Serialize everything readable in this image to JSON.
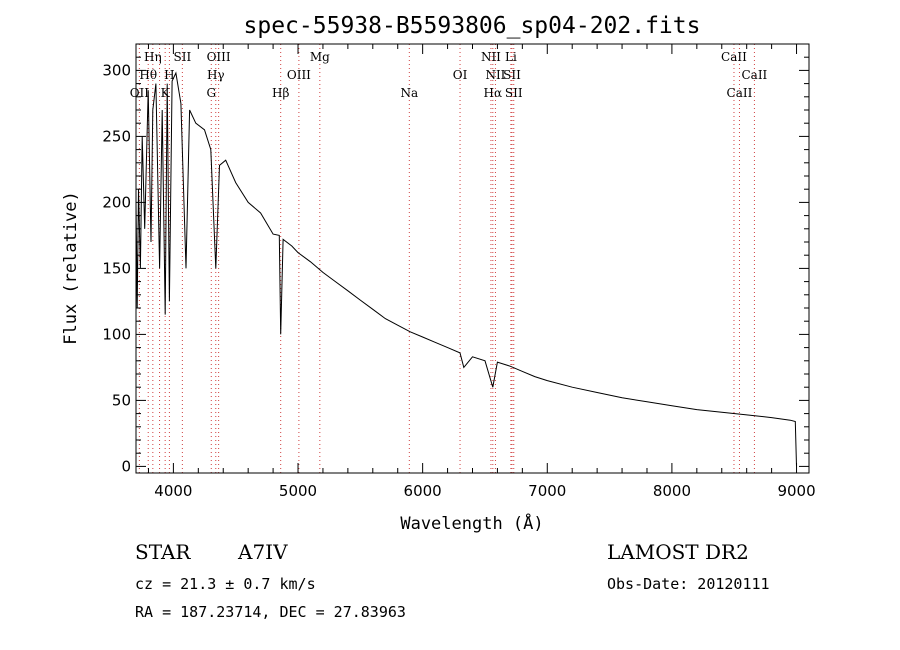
{
  "chart_data": {
    "type": "line",
    "title": "spec-55938-B5593806_sp04-202.fits",
    "xlabel": "Wavelength (Å)",
    "ylabel": "Flux (relative)",
    "xlim": [
      3700,
      9100
    ],
    "ylim": [
      -5,
      320
    ],
    "xticks": [
      4000,
      5000,
      6000,
      7000,
      8000,
      9000
    ],
    "yticks": [
      0,
      50,
      100,
      150,
      200,
      250,
      300
    ],
    "grid": false,
    "series": [
      {
        "x": [
          3700,
          3710,
          3720,
          3735,
          3750,
          3770,
          3798,
          3820,
          3835,
          3860,
          3889,
          3910,
          3934,
          3950,
          3968,
          3990,
          4020,
          4060,
          4101,
          4130,
          4180,
          4250,
          4300,
          4340,
          4370,
          4420,
          4500,
          4600,
          4700,
          4800,
          4850,
          4861,
          4880,
          4950,
          5000,
          5100,
          5200,
          5300,
          5400,
          5500,
          5600,
          5700,
          5800,
          5900,
          6000,
          6100,
          6200,
          6300,
          6330,
          6400,
          6500,
          6563,
          6600,
          6700,
          6800,
          6900,
          7000,
          7200,
          7400,
          7600,
          7800,
          8000,
          8200,
          8400,
          8600,
          8800,
          8950,
          8990,
          9000
        ],
        "y": [
          200,
          120,
          210,
          150,
          250,
          180,
          285,
          170,
          270,
          290,
          150,
          270,
          115,
          290,
          125,
          292,
          298,
          275,
          150,
          270,
          260,
          255,
          240,
          150,
          228,
          232,
          215,
          200,
          192,
          176,
          175,
          100,
          172,
          167,
          162,
          155,
          147,
          140,
          133,
          126,
          119,
          112,
          107,
          102,
          98,
          94,
          90,
          86,
          75,
          83,
          80,
          60,
          79,
          76,
          72,
          68,
          65,
          60,
          56,
          52,
          49,
          46,
          43,
          41,
          39,
          37,
          35,
          34,
          0
        ]
      }
    ],
    "annotations": [
      {
        "label": "Hη",
        "x": 3835,
        "row": 1
      },
      {
        "label": "Hθ",
        "x": 3798,
        "row": 2
      },
      {
        "label": "OII",
        "x": 3727,
        "row": 3
      },
      {
        "label": "H",
        "x": 3968,
        "row": 2
      },
      {
        "label": "K",
        "x": 3934,
        "row": 3
      },
      {
        "label": "SII",
        "x": 4072,
        "row": 1
      },
      {
        "label": "OIII",
        "x": 4363,
        "row": 1
      },
      {
        "label": "Hγ",
        "x": 4340,
        "row": 2
      },
      {
        "label": "G",
        "x": 4304,
        "row": 3
      },
      {
        "label": "Hβ",
        "x": 4861,
        "row": 3
      },
      {
        "label": "OIII",
        "x": 5007,
        "row": 2
      },
      {
        "label": "Mg",
        "x": 5175,
        "row": 1
      },
      {
        "label": "Na",
        "x": 5893,
        "row": 3
      },
      {
        "label": "OI",
        "x": 6300,
        "row": 2
      },
      {
        "label": "NII",
        "x": 6548,
        "row": 1
      },
      {
        "label": "Li",
        "x": 6708,
        "row": 1
      },
      {
        "label": "NII",
        "x": 6584,
        "row": 2
      },
      {
        "label": "SII",
        "x": 6717,
        "row": 2
      },
      {
        "label": "Hα",
        "x": 6563,
        "row": 3
      },
      {
        "label": "SII",
        "x": 6731,
        "row": 3
      },
      {
        "label": "CaII",
        "x": 8498,
        "row": 1
      },
      {
        "label": "CaII",
        "x": 8662,
        "row": 2
      },
      {
        "label": "CaII",
        "x": 8542,
        "row": 3
      }
    ],
    "line_markers": [
      3727,
      3798,
      3835,
      3889,
      3934,
      3968,
      4072,
      4304,
      4340,
      4363,
      4861,
      5007,
      5175,
      5893,
      6300,
      6548,
      6563,
      6584,
      6708,
      6717,
      6731,
      8498,
      8542,
      8662
    ]
  },
  "info": {
    "class_label": "STAR",
    "subclass": "A7IV",
    "survey": "LAMOST DR2",
    "cz": "cz = 21.3 ± 0.7 km/s",
    "obs_date": "Obs-Date: 20120111",
    "coords": "RA = 187.23714, DEC =  27.83963"
  }
}
